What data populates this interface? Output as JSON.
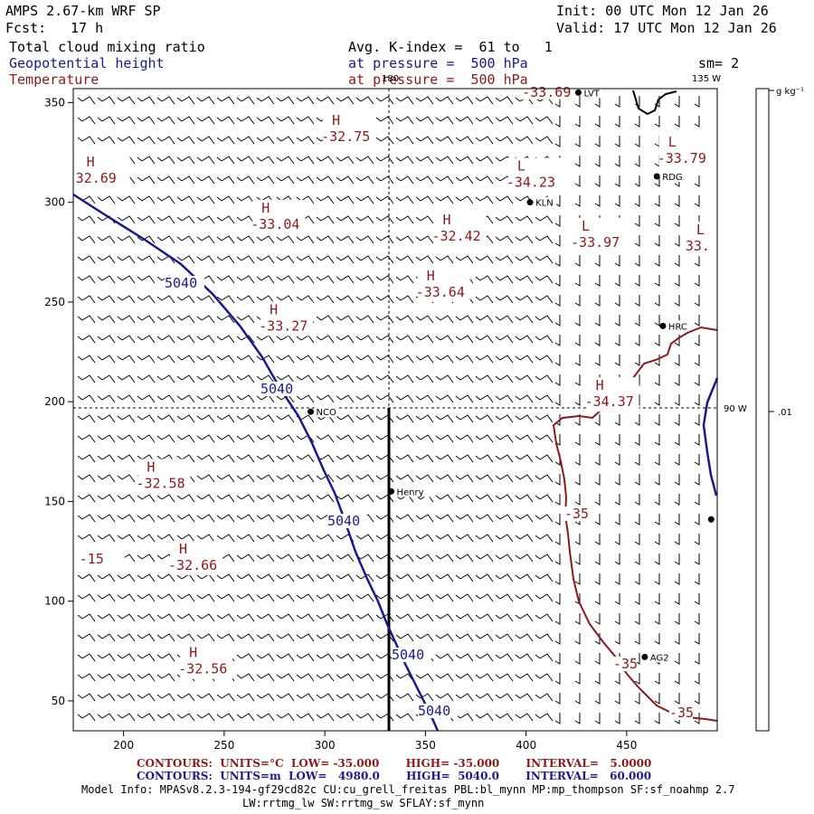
{
  "header": {
    "model": "AMPS 2.67-km WRF SP",
    "fcst_label": "Fcst:",
    "fcst_value": "17 h",
    "init": "Init: 00 UTC Mon 12 Jan 26",
    "valid": "Valid: 17 UTC Mon 12 Jan 26",
    "field1": "Total cloud mixing ratio",
    "field2": "Geopotential height",
    "field3": "Temperature",
    "avg": "Avg. K-index =  61 to   1",
    "pressure1": "at pressure =  500 hPa",
    "pressure2": "at pressure =  500 hPa",
    "sm": "sm= 2"
  },
  "axes": {
    "x_ticks": [
      200,
      250,
      300,
      350,
      400,
      450
    ],
    "y_ticks": [
      50,
      100,
      150,
      200,
      250,
      300,
      350
    ],
    "x_range": [
      175,
      495
    ],
    "y_range": [
      35,
      357
    ]
  },
  "map_labels": {
    "lon_180": "180",
    "lon_135w": "135 W",
    "lon_90w": "90 W"
  },
  "colorbar": {
    "unit": "g kg⁻¹",
    "tick": ".01"
  },
  "highs_lows": [
    {
      "type": "H",
      "value": "-32.75",
      "x": 300,
      "y": 338
    },
    {
      "type": "H",
      "value": "32.69",
      "x": 178,
      "y": 317
    },
    {
      "type": "L",
      "value": "-34.23",
      "x": 392,
      "y": 315
    },
    {
      "type": "L",
      "value": "-33.79",
      "x": 467,
      "y": 327
    },
    {
      "type": "H",
      "value": "-33.04",
      "x": 265,
      "y": 294
    },
    {
      "type": "H",
      "value": "-32.42",
      "x": 355,
      "y": 288
    },
    {
      "type": "L",
      "value": "-33.97",
      "x": 424,
      "y": 285
    },
    {
      "type": "L",
      "value": "33.",
      "x": 481,
      "y": 283
    },
    {
      "type": "H",
      "value": "-33.64",
      "x": 347,
      "y": 260
    },
    {
      "type": "H",
      "value": "-33.27",
      "x": 269,
      "y": 243
    },
    {
      "type": "H",
      "value": "-34.37",
      "x": 431,
      "y": 205
    },
    {
      "type": "H",
      "value": "-32.58",
      "x": 208,
      "y": 164
    },
    {
      "type": "H",
      "value": "-32.66",
      "x": 224,
      "y": 123
    },
    {
      "type": "H",
      "value": "-32.56",
      "x": 229,
      "y": 71
    }
  ],
  "partial_labels": [
    {
      "text": "-33.69",
      "x": 398,
      "y": 353
    },
    {
      "text": "-15",
      "x": 178,
      "y": 119
    }
  ],
  "height_contour_labels": [
    "5040",
    "5040",
    "5040",
    "5040",
    "5040"
  ],
  "temp_contour_labels": [
    "-35",
    "-35",
    "-35"
  ],
  "stations": [
    {
      "name": "LVT",
      "x": 426,
      "y": 355
    },
    {
      "name": "RDG",
      "x": 465,
      "y": 313
    },
    {
      "name": "KLN",
      "x": 402,
      "y": 300
    },
    {
      "name": "HRC",
      "x": 468,
      "y": 238
    },
    {
      "name": "NCO",
      "x": 293,
      "y": 195
    },
    {
      "name": "Henry",
      "x": 333,
      "y": 155
    },
    {
      "name": "AG2",
      "x": 459,
      "y": 72
    },
    {
      "name": "",
      "x": 492,
      "y": 141
    }
  ],
  "footer": {
    "temp_contours": "CONTOURS:  UNITS=°C  LOW= -35.000       HIGH= -35.000       INTERVAL=   5.0000",
    "hgt_contours": "CONTOURS:  UNITS=m  LOW=   4980.0       HIGH=  5040.0       INTERVAL=   60.000",
    "model_info1": "Model Info: MPASv8.2.3-194-gf29cd82c CU:cu_grell_freitas PBL:bl_mynn MP:mp_thompson SF:sf_noahmp 2.7",
    "model_info2": "LW:rrtmg_lw SW:rrtmg_sw SFLAY:sf_mynn"
  },
  "colors": {
    "height": "#1a1a8c",
    "temperature": "#8b1a1a",
    "barbs": "#000000"
  }
}
